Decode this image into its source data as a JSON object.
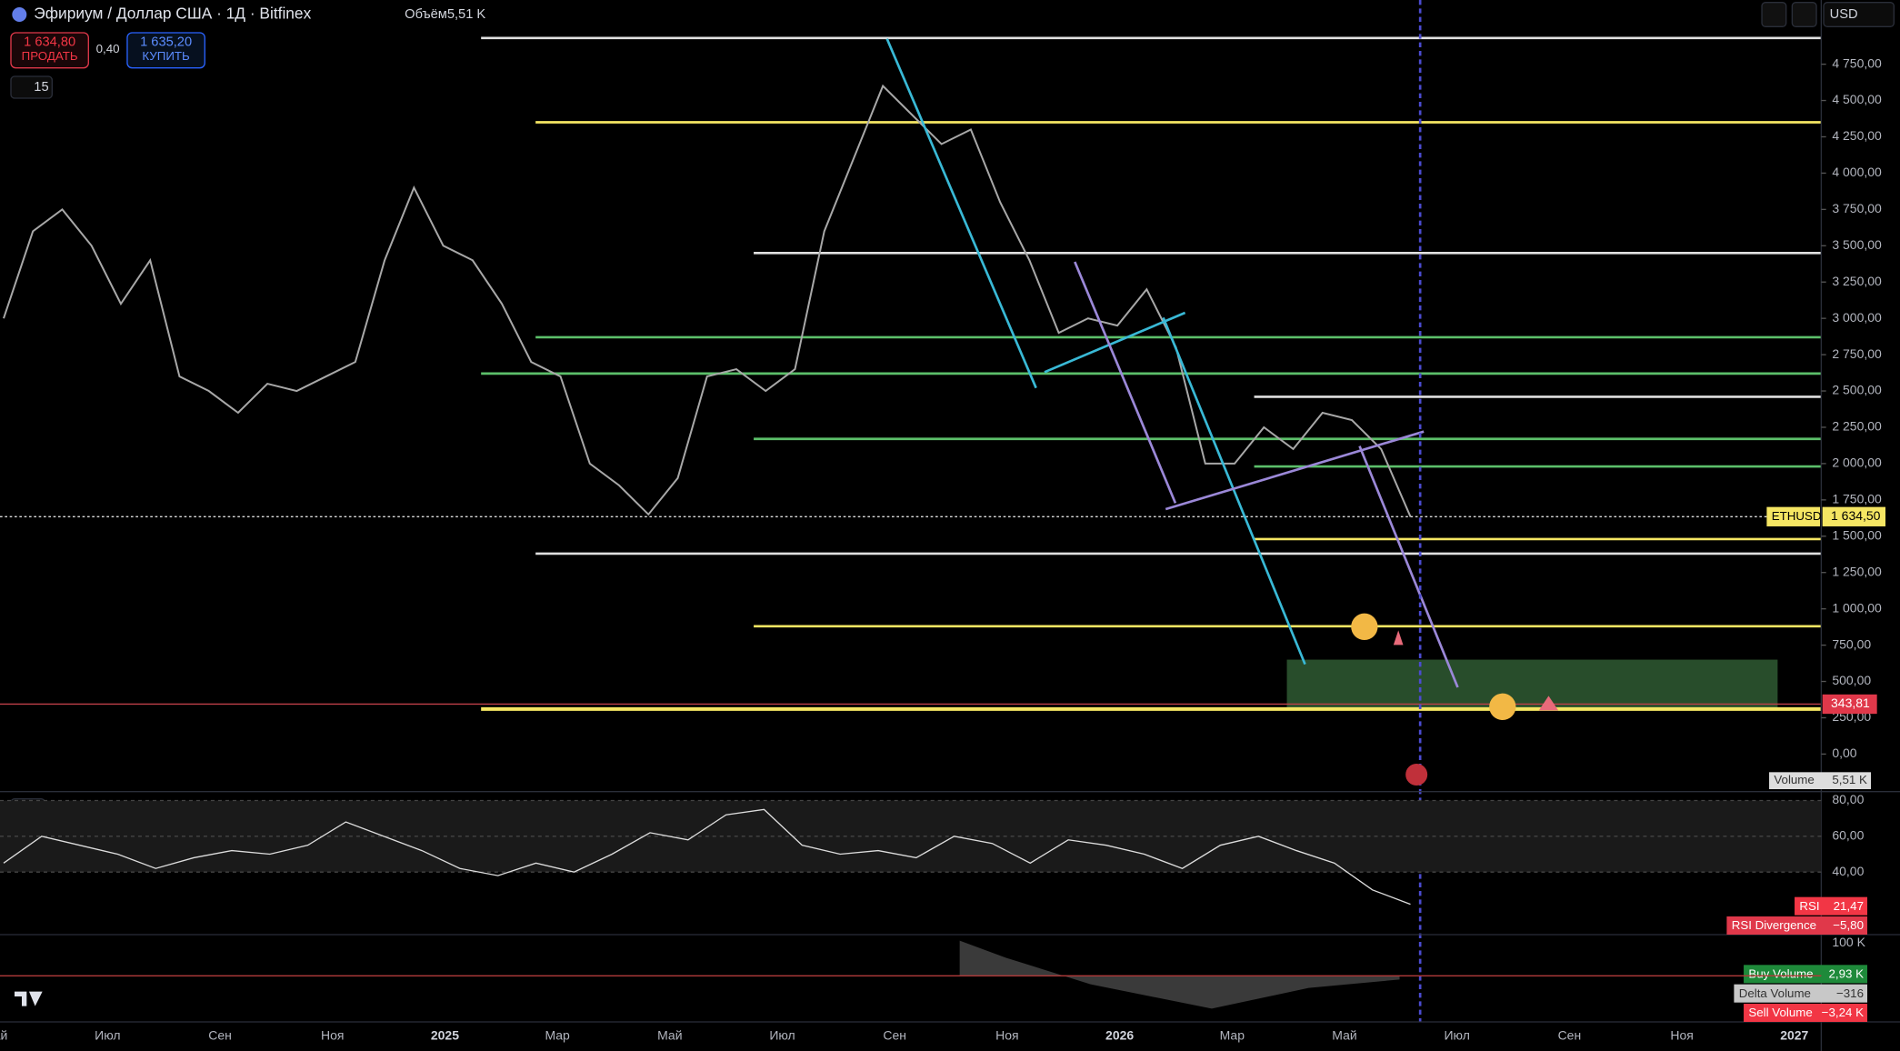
{
  "header": {
    "symbol": "Эфириум / Доллар США · 1Д · Bitfinex",
    "volume_label": "Объём",
    "volume_value": "5,51 K",
    "sell_price": "1 634,80",
    "sell_label": "ПРОДАТЬ",
    "spread": "0,40",
    "buy_price": "1 635,20",
    "buy_label": "КУПИТЬ",
    "interval_count": "15",
    "currency": "USD"
  },
  "chart_data": {
    "type": "line",
    "x_labels": [
      "Май",
      "Июл",
      "Сен",
      "Ноя",
      "2025",
      "Мар",
      "Май",
      "Июл",
      "Сен",
      "Ноя",
      "2026",
      "Мар",
      "Май",
      "Июл",
      "Сен",
      "Ноя",
      "2027"
    ],
    "ylim": [
      -250,
      5192
    ],
    "yticks": [
      {
        "value": 0,
        "label": "0,00"
      },
      {
        "value": 250,
        "label": "250,00"
      },
      {
        "value": 500,
        "label": "500,00"
      },
      {
        "value": 750,
        "label": "750,00"
      },
      {
        "value": 1000,
        "label": "1 000,00"
      },
      {
        "value": 1250,
        "label": "1 250,00"
      },
      {
        "value": 1500,
        "label": "1 500,00"
      },
      {
        "value": 1750,
        "label": "1 750,00"
      },
      {
        "value": 2000,
        "label": "2 000,00"
      },
      {
        "value": 2250,
        "label": "2 250,00"
      },
      {
        "value": 2500,
        "label": "2 500,00"
      },
      {
        "value": 2750,
        "label": "2 750,00"
      },
      {
        "value": 3000,
        "label": "3 000,00"
      },
      {
        "value": 3250,
        "label": "3 250,00"
      },
      {
        "value": 3500,
        "label": "3 500,00"
      },
      {
        "value": 3750,
        "label": "3 750,00"
      },
      {
        "value": 4000,
        "label": "4 000,00"
      },
      {
        "value": 4250,
        "label": "4 250,00"
      },
      {
        "value": 4500,
        "label": "4 500,00"
      },
      {
        "value": 4750,
        "label": "4 750,00"
      }
    ],
    "series": [
      {
        "name": "ETHUSD",
        "color": "#a8a8a8",
        "values": [
          3000,
          3600,
          3750,
          3500,
          3100,
          3400,
          2600,
          2500,
          2350,
          2550,
          2500,
          2600,
          2700,
          3400,
          3900,
          3500,
          3400,
          3100,
          2700,
          2600,
          2000,
          1850,
          1650,
          1900,
          2600,
          2650,
          2500,
          2650,
          3600,
          4100,
          4600,
          4400,
          4200,
          4300,
          3800,
          3400,
          2900,
          3000,
          2950,
          3200,
          2800,
          2000,
          2000,
          2250,
          2100,
          2350,
          2300,
          2100,
          1634.5
        ]
      }
    ],
    "last_price": {
      "value": 1634.5,
      "value_label": "1 634,50"
    },
    "alert_price": {
      "value": 343.81,
      "value_label": "343,81"
    },
    "levels": [
      {
        "value": 4930,
        "color": "#e0e0e0"
      },
      {
        "value": 4350,
        "color": "#f5e663"
      },
      {
        "value": 3450,
        "color": "#e0e0e0"
      },
      {
        "value": 2870,
        "color": "#5cbf6a"
      },
      {
        "value": 2620,
        "color": "#5cbf6a"
      },
      {
        "value": 2460,
        "color": "#e0e0e0"
      },
      {
        "value": 2170,
        "color": "#5cbf6a"
      },
      {
        "value": 1980,
        "color": "#5cbf6a"
      },
      {
        "value": 1480,
        "color": "#f5e663"
      },
      {
        "value": 1380,
        "color": "#e0e0e0"
      },
      {
        "value": 880,
        "color": "#f5e663"
      },
      {
        "value": 310,
        "color": "#f5e663"
      }
    ],
    "zone": {
      "low": 320,
      "high": 650,
      "color": "#2f5a32"
    },
    "volume": {
      "label": "Volume",
      "value_label": "5,51 K"
    }
  },
  "rsi_pane": {
    "length": "4",
    "ylim": [
      5,
      85
    ],
    "yticks": [
      {
        "value": 80,
        "label": "80,00"
      },
      {
        "value": 60,
        "label": "60,00"
      },
      {
        "value": 40,
        "label": "40,00"
      }
    ],
    "values": [
      45,
      60,
      55,
      50,
      42,
      48,
      52,
      50,
      55,
      68,
      60,
      52,
      42,
      38,
      45,
      40,
      50,
      62,
      58,
      72,
      75,
      55,
      50,
      52,
      48,
      60,
      56,
      45,
      58,
      55,
      50,
      42,
      55,
      60,
      52,
      45,
      30,
      22
    ],
    "rsi_label": "RSI",
    "rsi_value": "21,47",
    "div_label": "RSI Divergence",
    "div_value": "−5,80"
  },
  "delta_pane": {
    "ytick_label": "100 K",
    "buy_label": "Buy Volume",
    "buy_value": "2,93 K",
    "delta_label": "Delta Volume",
    "delta_value": "−316",
    "sell_label": "Sell Volume",
    "sell_value": "−3,24 K"
  }
}
